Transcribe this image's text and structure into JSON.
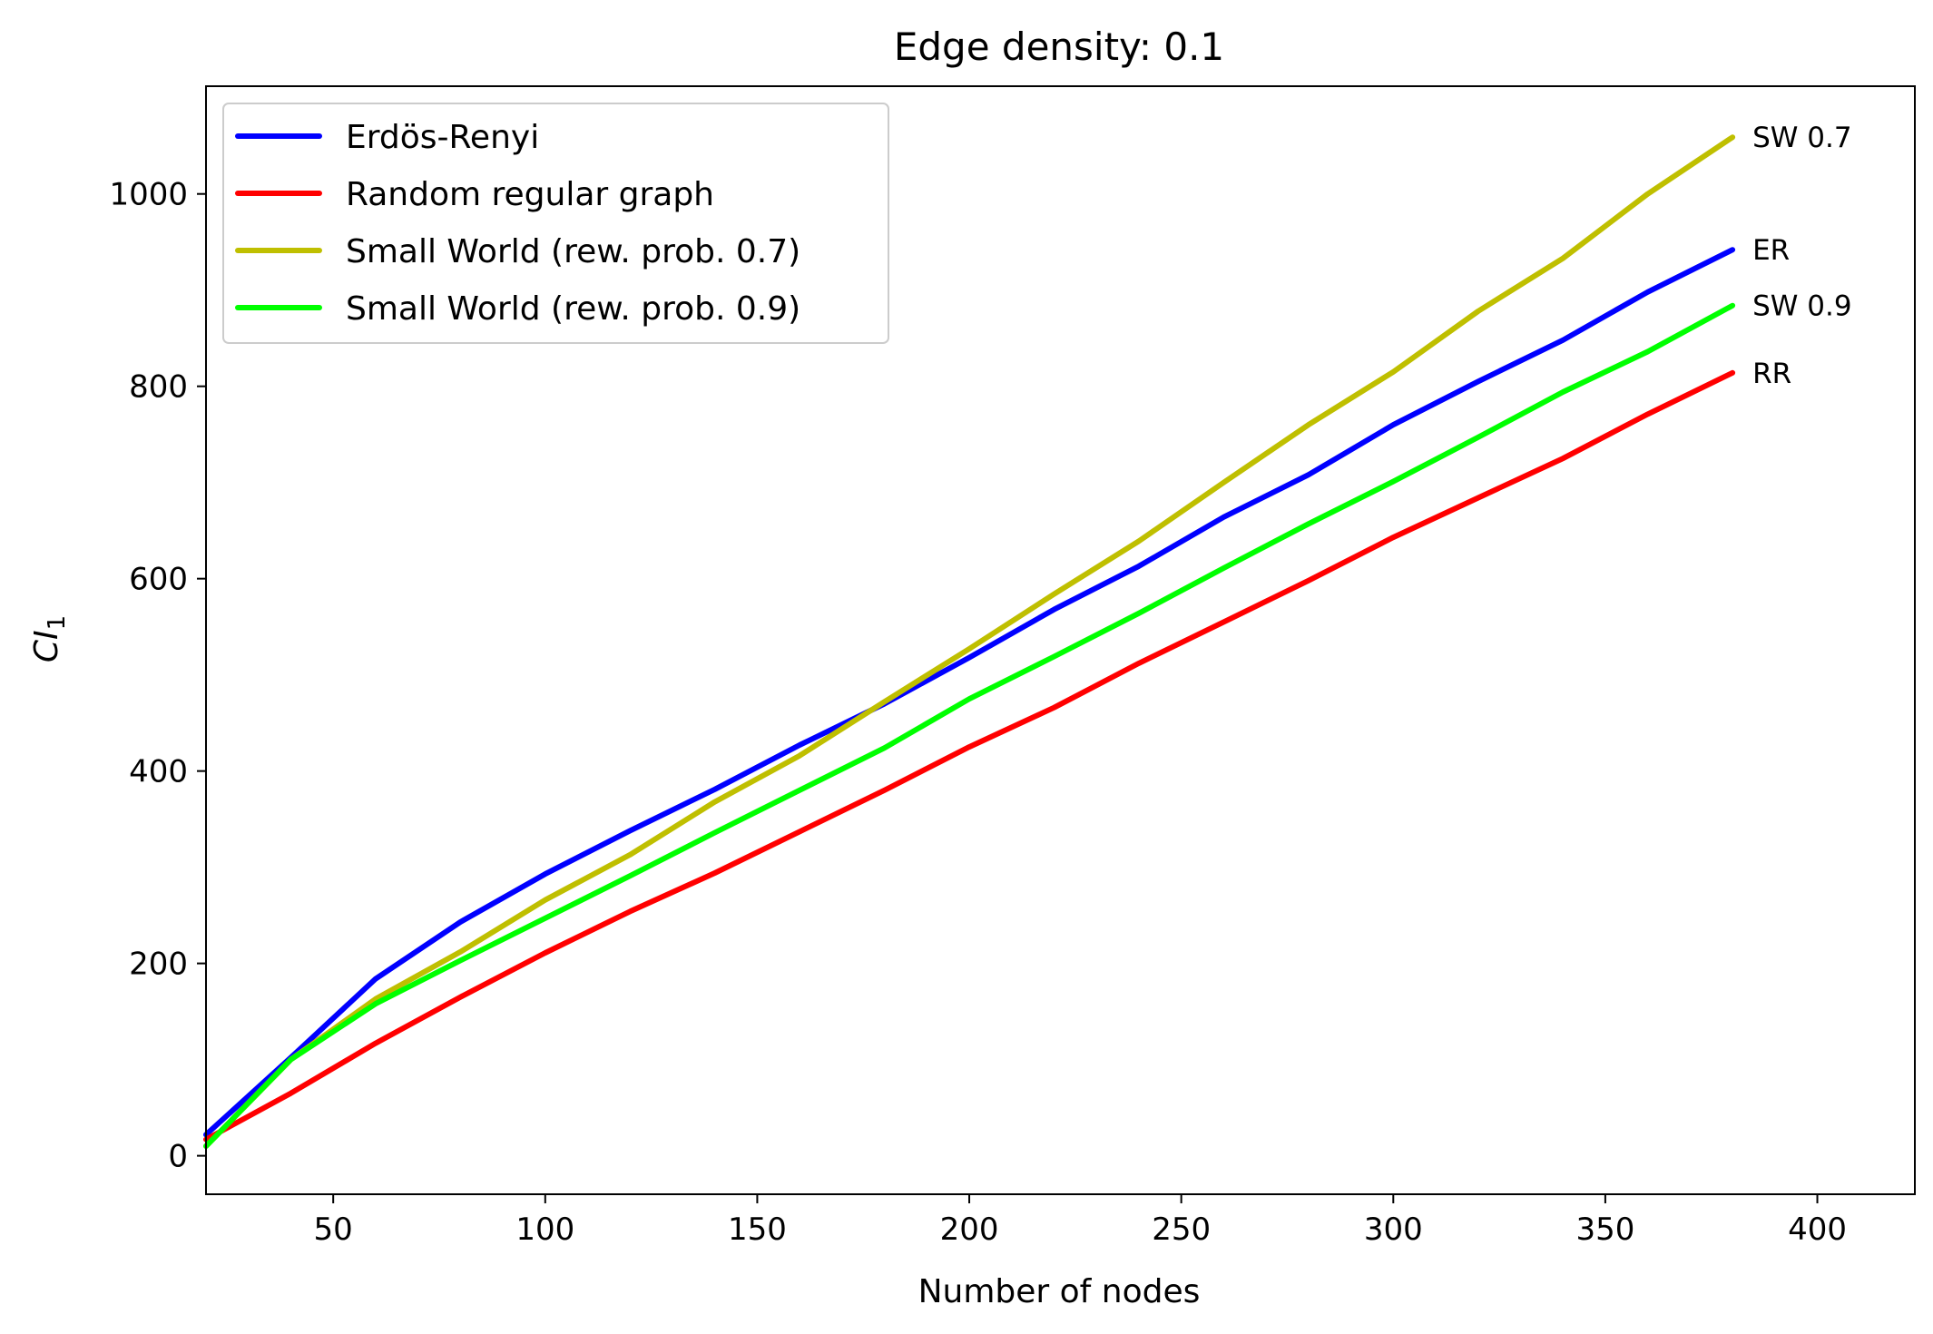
{
  "chart_data": {
    "type": "line",
    "title": "Edge density: 0.1",
    "xlabel": "Number of nodes",
    "ylabel_main": "CI",
    "ylabel_sub": "1",
    "xlim": [
      20,
      423
    ],
    "ylim": [
      -40,
      1112
    ],
    "xticks": [
      50,
      100,
      150,
      200,
      250,
      300,
      350,
      400
    ],
    "yticks": [
      0,
      200,
      400,
      600,
      800,
      1000
    ],
    "grid": false,
    "legend_position": "upper-left",
    "x": [
      20,
      40,
      60,
      80,
      100,
      120,
      140,
      160,
      180,
      200,
      220,
      240,
      260,
      280,
      300,
      320,
      340,
      360,
      380
    ],
    "series": [
      {
        "name": "Erdös-Renyi",
        "end_label": "ER",
        "color": "#0000ff",
        "values": [
          22,
          102,
          184,
          243,
          293,
          338,
          381,
          427,
          470,
          518,
          568,
          613,
          664,
          708,
          760,
          805,
          848,
          898,
          942
        ]
      },
      {
        "name": "Random regular graph",
        "end_label": "RR",
        "color": "#ff0000",
        "values": [
          17,
          65,
          117,
          165,
          211,
          254,
          294,
          337,
          380,
          425,
          466,
          512,
          555,
          598,
          643,
          684,
          725,
          771,
          814
        ]
      },
      {
        "name": "Small World (rew. prob. 0.7)",
        "end_label": "SW 0.7",
        "color": "#bfbf00",
        "values": [
          10,
          100,
          163,
          212,
          266,
          313,
          368,
          416,
          472,
          527,
          584,
          639,
          700,
          760,
          815,
          878,
          933,
          1000,
          1059
        ]
      },
      {
        "name": "Small World (rew. prob. 0.9)",
        "end_label": "SW 0.9",
        "color": "#00ff00",
        "values": [
          10,
          100,
          158,
          203,
          247,
          291,
          336,
          380,
          424,
          475,
          519,
          564,
          611,
          657,
          701,
          747,
          794,
          836,
          884
        ]
      }
    ]
  }
}
